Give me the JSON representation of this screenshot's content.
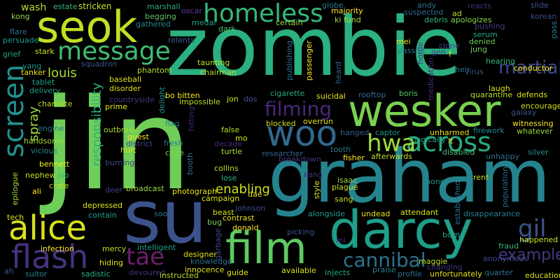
{
  "words": [
    {
      "text": "zombie",
      "color": "#2bb07f"
    },
    {
      "text": "jin",
      "color": "#6ece58"
    },
    {
      "text": "graham",
      "color": "#25838e"
    },
    {
      "text": "su",
      "color": "#3b528b"
    },
    {
      "text": "seok",
      "color": "#c2df23"
    },
    {
      "text": "wesker",
      "color": "#7ad151"
    },
    {
      "text": "darcy",
      "color": "#1f9e89"
    },
    {
      "text": "alice",
      "color": "#d8e219"
    },
    {
      "text": "woo",
      "color": "#31688e"
    },
    {
      "text": "film",
      "color": "#5ec962"
    },
    {
      "text": "homeless",
      "color": "#35b779"
    },
    {
      "text": "message",
      "color": "#3fbc73"
    },
    {
      "text": "flash",
      "color": "#46327e"
    },
    {
      "text": "screen",
      "color": "#21918c"
    },
    {
      "text": "across",
      "color": "#25ab82"
    },
    {
      "text": "hwa",
      "color": "#a0da39"
    },
    {
      "text": "filming",
      "color": "#482878"
    },
    {
      "text": "tae",
      "color": "#6b1f6b"
    },
    {
      "text": "gil",
      "color": "#3a548c"
    },
    {
      "text": "cannibal",
      "color": "#2c728e"
    },
    {
      "text": "martial",
      "color": "#3e4989"
    },
    {
      "text": "example",
      "color": "#443983"
    },
    {
      "text": "louis",
      "color": "#aadc32"
    },
    {
      "text": "responsibility",
      "color": "#2db27d"
    },
    {
      "text": "spray",
      "color": "#9fda3a"
    },
    {
      "text": "enabling",
      "color": "#d0e11c"
    },
    {
      "text": "wash",
      "color": "#b5de2b"
    },
    {
      "text": "estate",
      "color": "#37b878"
    },
    {
      "text": "stricken",
      "color": "#c5e021"
    },
    {
      "text": "marshall",
      "color": "#28ae80"
    },
    {
      "text": "oscar",
      "color": "#5e3c99"
    },
    {
      "text": "globe",
      "color": "#2a788e"
    },
    {
      "text": "majority",
      "color": "#fde725"
    },
    {
      "text": "andy",
      "color": "#2e6e8e"
    },
    {
      "text": "suspected",
      "color": "#2f6b8e"
    },
    {
      "text": "reacts",
      "color": "#472c7a"
    },
    {
      "text": "slide",
      "color": "#3b528b"
    },
    {
      "text": "kong",
      "color": "#8fd744"
    },
    {
      "text": "begging",
      "color": "#5ac864"
    },
    {
      "text": "gathered",
      "color": "#26828e"
    },
    {
      "text": "ad",
      "color": "#b8de29"
    },
    {
      "text": "debris",
      "color": "#35b779"
    },
    {
      "text": "apologizes",
      "color": "#84d44b"
    },
    {
      "text": "korean",
      "color": "#3e4a89"
    },
    {
      "text": "ki fund",
      "color": "#a5db36"
    },
    {
      "text": "medal",
      "color": "#20a386"
    },
    {
      "text": "certain",
      "color": "#9dd93b"
    },
    {
      "text": "pushing",
      "color": "#433e85"
    },
    {
      "text": "pass",
      "color": "#277f8e"
    },
    {
      "text": "flare",
      "color": "#2c718e"
    },
    {
      "text": "persuade",
      "color": "#1f9a8a"
    },
    {
      "text": "relents",
      "color": "#365c8d"
    },
    {
      "text": "dark",
      "color": "#52c569"
    },
    {
      "text": "mei",
      "color": "#f1e51d"
    },
    {
      "text": "serum",
      "color": "#27ad81"
    },
    {
      "text": "grief",
      "color": "#22a785"
    },
    {
      "text": "stark",
      "color": "#c8e020"
    },
    {
      "text": "squadron",
      "color": "#39558c"
    },
    {
      "text": "taunting",
      "color": "#bddf26"
    },
    {
      "text": "publishing",
      "color": "#2d708e"
    },
    {
      "text": "passed",
      "color": "#287d8e"
    },
    {
      "text": "denied",
      "color": "#6ccd5a"
    },
    {
      "text": "clone",
      "color": "#3f4788"
    },
    {
      "text": "gen",
      "color": "#443983"
    },
    {
      "text": "f",
      "color": "#dde318"
    },
    {
      "text": "yang",
      "color": "#1f968b"
    },
    {
      "text": "tanker",
      "color": "#e7e419"
    },
    {
      "text": "phantom",
      "color": "#b2dd2d"
    },
    {
      "text": "chairman",
      "color": "#addc30"
    },
    {
      "text": "passenger",
      "color": "#fde725"
    },
    {
      "text": "heard",
      "color": "#31688e"
    },
    {
      "text": "horde",
      "color": "#453882"
    },
    {
      "text": "heir",
      "color": "#2a768e"
    },
    {
      "text": "jung",
      "color": "#73d056"
    },
    {
      "text": "hearing",
      "color": "#35b779"
    },
    {
      "text": "virus",
      "color": "#3b528b"
    },
    {
      "text": "conductor",
      "color": "#f8e621"
    },
    {
      "text": "tablet",
      "color": "#1fa088"
    },
    {
      "text": "delivery",
      "color": "#1fa188"
    },
    {
      "text": "baseball",
      "color": "#dae319"
    },
    {
      "text": "disorder",
      "color": "#d5e21a"
    },
    {
      "text": "medication",
      "color": "#482979"
    },
    {
      "text": "laugh",
      "color": "#e2e418"
    },
    {
      "text": "quarantine",
      "color": "#bade28"
    },
    {
      "text": "defends",
      "color": "#e0e318"
    },
    {
      "text": "charlotte",
      "color": "#c2df23"
    },
    {
      "text": "prime",
      "color": "#e5e419"
    },
    {
      "text": "countryside",
      "color": "#453581"
    },
    {
      "text": "delight",
      "color": "#20928c"
    },
    {
      "text": "bo bitten",
      "color": "#f4e61e"
    },
    {
      "text": "impossible",
      "color": "#b8de29"
    },
    {
      "text": "jon",
      "color": "#cde11d"
    },
    {
      "text": "dos",
      "color": "#3b528b"
    },
    {
      "text": "cigarette",
      "color": "#24aa83"
    },
    {
      "text": "suicidal",
      "color": "#efe51c"
    },
    {
      "text": "rooftop",
      "color": "#2e6d8e"
    },
    {
      "text": "boris",
      "color": "#56c667"
    },
    {
      "text": "encourage",
      "color": "#d0e11c"
    },
    {
      "text": "galaxy",
      "color": "#39568c"
    },
    {
      "text": "engine",
      "color": "#2a788e"
    },
    {
      "text": "outbreak",
      "color": "#a2da37"
    },
    {
      "text": "guest",
      "color": "#fde725"
    },
    {
      "text": "flag",
      "color": "#277f8e"
    },
    {
      "text": "hitting",
      "color": "#482475"
    },
    {
      "text": "false",
      "color": "#b5de2b"
    },
    {
      "text": "blocked",
      "color": "#c8e020"
    },
    {
      "text": "overrun",
      "color": "#dde318"
    },
    {
      "text": "hanged",
      "color": "#375a8c"
    },
    {
      "text": "captor",
      "color": "#1f958b"
    },
    {
      "text": "firework",
      "color": "#24868e"
    },
    {
      "text": "witnessing",
      "color": "#fde725"
    },
    {
      "text": "whatever",
      "color": "#9bd93c"
    },
    {
      "text": "unharmed",
      "color": "#e7e419"
    },
    {
      "text": "magically",
      "color": "#22a884"
    },
    {
      "text": "lt",
      "color": "#fde725"
    },
    {
      "text": "handsome",
      "color": "#a0da39"
    },
    {
      "text": "district",
      "color": "#414487"
    },
    {
      "text": "fresh",
      "color": "#2a788e"
    },
    {
      "text": "mo",
      "color": "#d2e21b"
    },
    {
      "text": "decade",
      "color": "#482878"
    },
    {
      "text": "turtle",
      "color": "#a8db34"
    },
    {
      "text": "researcher",
      "color": "#32648e"
    },
    {
      "text": "tooth",
      "color": "#2b748e"
    },
    {
      "text": "disabled",
      "color": "#4ac16d"
    },
    {
      "text": "unhappy",
      "color": "#2f6c8e"
    },
    {
      "text": "silver",
      "color": "#218f8d"
    },
    {
      "text": "vicious",
      "color": "#238a8d"
    },
    {
      "text": "hurt",
      "color": "#e1e418"
    },
    {
      "text": "cage",
      "color": "#7ad151"
    },
    {
      "text": "booth",
      "color": "#2d708e"
    },
    {
      "text": "collins",
      "color": "#bddf26"
    },
    {
      "text": "breakdown",
      "color": "#46317e"
    },
    {
      "text": "fisher",
      "color": "#fde725"
    },
    {
      "text": "afterwards",
      "color": "#c0df25"
    },
    {
      "text": "bennett",
      "color": "#ecf31b"
    },
    {
      "text": "burning",
      "color": "#404688"
    },
    {
      "text": "lose",
      "color": "#2ab07f"
    },
    {
      "text": "kang",
      "color": "#472d7b"
    },
    {
      "text": "isaac",
      "color": "#9ad93c"
    },
    {
      "text": "hong",
      "color": "#21918c"
    },
    {
      "text": "rent",
      "color": "#c2df23"
    },
    {
      "text": "population",
      "color": "#31688e"
    },
    {
      "text": "nephew",
      "color": "#c2df23"
    },
    {
      "text": "joo",
      "color": "#35b779"
    },
    {
      "text": "epilogue",
      "color": "#a0da39"
    },
    {
      "text": "plague",
      "color": "#c5e021"
    },
    {
      "text": "crate",
      "color": "#bddf26"
    },
    {
      "text": "deer",
      "color": "#433e85"
    },
    {
      "text": "broadcast",
      "color": "#a0da39"
    },
    {
      "text": "photograph",
      "color": "#e5e419"
    },
    {
      "text": "campaign",
      "color": "#e2e418"
    },
    {
      "text": "dae",
      "color": "#e5e419"
    },
    {
      "text": "style",
      "color": "#d8e219"
    },
    {
      "text": "sang",
      "color": "#c2df23"
    },
    {
      "text": "established",
      "color": "#2c728e"
    },
    {
      "text": "ali",
      "color": "#fde725"
    },
    {
      "text": "depressed",
      "color": "#dde318"
    },
    {
      "text": "johnson",
      "color": "#3e4989"
    },
    {
      "text": "beast",
      "color": "#d5e21a"
    },
    {
      "text": "contrast",
      "color": "#e7e419"
    },
    {
      "text": "bug",
      "color": "#7ad151"
    },
    {
      "text": "undead",
      "color": "#e5e419"
    },
    {
      "text": "attendant",
      "color": "#dde318"
    },
    {
      "text": "disappearance",
      "color": "#26828e"
    },
    {
      "text": "tech",
      "color": "#e2e418"
    },
    {
      "text": "contain",
      "color": "#1f9e89"
    },
    {
      "text": "soo",
      "color": "#2b748e"
    },
    {
      "text": "donald",
      "color": "#fde725"
    },
    {
      "text": "picking",
      "color": "#3b528b"
    },
    {
      "text": "alongside",
      "color": "#1f978b"
    },
    {
      "text": "born",
      "color": "#26ad81"
    },
    {
      "text": "happened",
      "color": "#c5e021"
    },
    {
      "text": "fraud",
      "color": "#35b779"
    },
    {
      "text": "infection",
      "color": "#fde725"
    },
    {
      "text": "mercy",
      "color": "#bddf26"
    },
    {
      "text": "intelligent",
      "color": "#1f9e89"
    },
    {
      "text": "designer",
      "color": "#dde318"
    },
    {
      "text": "garbage",
      "color": "#3f4788"
    },
    {
      "text": "mi",
      "color": "#472c7a"
    },
    {
      "text": "anonymous",
      "color": "#404688"
    },
    {
      "text": "hiding",
      "color": "#e2e418"
    },
    {
      "text": "knowledge",
      "color": "#2e6e8e"
    },
    {
      "text": "maggie",
      "color": "#bddf26"
    },
    {
      "text": "changing",
      "color": "#46337f"
    },
    {
      "text": "ah",
      "color": "#39568c"
    },
    {
      "text": "suitor",
      "color": "#26828e"
    },
    {
      "text": "sadistic",
      "color": "#29af7f"
    },
    {
      "text": "devoured",
      "color": "#46317e"
    },
    {
      "text": "innocence",
      "color": "#e7e419"
    },
    {
      "text": "instructed",
      "color": "#bddf26"
    },
    {
      "text": "guide",
      "color": "#e7e419"
    },
    {
      "text": "available",
      "color": "#d8e219"
    },
    {
      "text": "injects",
      "color": "#25ac82"
    },
    {
      "text": "praise",
      "color": "#26828e"
    },
    {
      "text": "profile",
      "color": "#2c718e"
    },
    {
      "text": "unfortunately",
      "color": "#e5e419"
    },
    {
      "text": "quarter",
      "color": "#2c728e"
    },
    {
      "text": "education",
      "color": "#dde318"
    }
  ]
}
